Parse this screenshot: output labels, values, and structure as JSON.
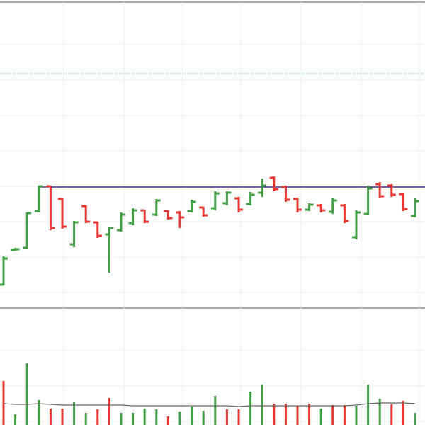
{
  "chart_data": [
    {
      "type": "ohlc",
      "categories": [
        null,
        null,
        null,
        null,
        null,
        null,
        null,
        null,
        null,
        null,
        null,
        null,
        null,
        null,
        null,
        null,
        null,
        null,
        null,
        null,
        null,
        null,
        null,
        null,
        null,
        null,
        null,
        null,
        null,
        null,
        null,
        null,
        null,
        null,
        null,
        null
      ],
      "open": [
        98,
        147,
        150,
        202,
        237,
        219,
        155,
        209,
        186,
        169,
        175,
        185,
        203,
        197,
        202,
        200,
        202,
        207,
        206,
        213,
        220,
        212,
        228,
        249,
        236,
        219,
        204,
        210,
        201,
        210,
        165,
        198,
        240,
        238,
        226,
        195
      ],
      "high": [
        138,
        150,
        200,
        238,
        238,
        220,
        188,
        210,
        187,
        180,
        200,
        206,
        204,
        219,
        203,
        202,
        218,
        208,
        230,
        230,
        222,
        229,
        248,
        251,
        238,
        221,
        213,
        212,
        220,
        212,
        203,
        238,
        243,
        240,
        228,
        220
      ],
      "low": [
        97,
        146,
        148,
        200,
        175,
        177,
        151,
        185,
        164,
        115,
        173,
        182,
        185,
        195,
        190,
        178,
        200,
        194,
        203,
        210,
        200,
        210,
        222,
        230,
        215,
        200,
        202,
        200,
        198,
        185,
        162,
        196,
        220,
        222,
        202,
        193
      ],
      "close": [
        135,
        148,
        199,
        237,
        178,
        180,
        186,
        187,
        167,
        178,
        197,
        203,
        187,
        217,
        192,
        193,
        215,
        196,
        227,
        228,
        204,
        225,
        238,
        233,
        218,
        204,
        211,
        203,
        217,
        188,
        200,
        234,
        223,
        225,
        205,
        216
      ],
      "up_color": "#43a047",
      "down_color": "#e53935",
      "level": {
        "value": 236,
        "color": "#4a2aa0"
      },
      "dotted_level": {
        "value": 396,
        "color": "#3fb8a6"
      },
      "ylim": [
        65,
        497
      ],
      "grid": true
    },
    {
      "type": "volume",
      "categories": [
        null,
        null,
        null,
        null,
        null,
        null,
        null,
        null,
        null,
        null,
        null,
        null,
        null,
        null,
        null,
        null,
        null,
        null,
        null,
        null,
        null,
        null,
        null,
        null,
        null,
        null,
        null,
        null,
        null,
        null,
        null,
        null,
        null,
        null,
        null,
        null
      ],
      "values": [
        62,
        15,
        87,
        35,
        23,
        23,
        32,
        17,
        22,
        38,
        17,
        17,
        23,
        22,
        12,
        19,
        26,
        20,
        41,
        22,
        22,
        47,
        57,
        30,
        30,
        27,
        30,
        23,
        28,
        28,
        27,
        57,
        37,
        29,
        34,
        17
      ],
      "colors": [
        "#e53935",
        "#43a047",
        "#43a047",
        "#43a047",
        "#e53935",
        "#e53935",
        "#43a047",
        "#43a047",
        "#e53935",
        "#e53935",
        "#43a047",
        "#43a047",
        "#43a047",
        "#43a047",
        "#e53935",
        "#43a047",
        "#43a047",
        "#43a047",
        "#43a047",
        "#e53935",
        "#e53935",
        "#43a047",
        "#43a047",
        "#e53935",
        "#e53935",
        "#e53935",
        "#e53935",
        "#43a047",
        "#e53935",
        "#e53935",
        "#43a047",
        "#43a047",
        "#43a047",
        "#e53935",
        "#e53935",
        "#43a047"
      ],
      "ma": [
        30,
        29,
        29,
        30,
        29,
        28,
        28,
        28,
        28,
        28,
        28,
        27,
        27,
        27,
        27,
        27,
        27,
        27,
        27,
        27,
        26,
        27,
        27,
        27,
        27,
        27,
        27,
        27,
        27,
        27,
        28,
        30,
        31,
        31,
        31,
        30
      ],
      "ma_color": "#666666",
      "ylim": [
        0,
        165
      ],
      "grid": true
    }
  ]
}
